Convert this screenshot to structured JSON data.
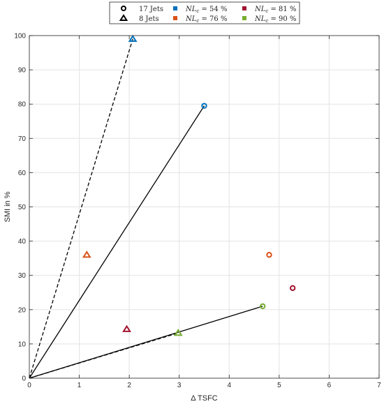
{
  "chart_data": {
    "type": "scatter",
    "title": "",
    "xlabel": "Δ TSFC",
    "ylabel": "SMI in %",
    "xlim": [
      0,
      7
    ],
    "ylim": [
      0,
      100
    ],
    "xticks": [
      "0",
      "1",
      "2",
      "3",
      "4",
      "5",
      "6",
      "7"
    ],
    "yticks": [
      "0",
      "10",
      "20",
      "30",
      "40",
      "50",
      "60",
      "70",
      "80",
      "90",
      "100"
    ],
    "grid": true,
    "legend_position": "top",
    "legend": {
      "markers": [
        {
          "label": "17 Jets",
          "shape": "circle"
        },
        {
          "label": "8 Jets",
          "shape": "triangle"
        }
      ],
      "colors": [
        {
          "label_var": "NL",
          "label_sub": "c",
          "label_rest": " = 54 %",
          "color": "#0072BD"
        },
        {
          "label_var": "NL",
          "label_sub": "c",
          "label_rest": " = 76 %",
          "color": "#D95319"
        },
        {
          "label_var": "NL",
          "label_sub": "c",
          "label_rest": " = 81 %",
          "color": "#A2142F"
        },
        {
          "label_var": "NL",
          "label_sub": "c",
          "label_rest": " = 90 %",
          "color": "#77AC30"
        }
      ]
    },
    "points": [
      {
        "shape": "circle",
        "color": "#0072BD",
        "x": 3.5,
        "y": 79.5
      },
      {
        "shape": "circle",
        "color": "#D95319",
        "x": 4.8,
        "y": 36
      },
      {
        "shape": "circle",
        "color": "#A2142F",
        "x": 5.27,
        "y": 26.3
      },
      {
        "shape": "circle",
        "color": "#77AC30",
        "x": 4.67,
        "y": 21
      },
      {
        "shape": "triangle",
        "color": "#0072BD",
        "x": 2.07,
        "y": 99
      },
      {
        "shape": "triangle",
        "color": "#D95319",
        "x": 1.15,
        "y": 36
      },
      {
        "shape": "triangle",
        "color": "#A2142F",
        "x": 1.95,
        "y": 14.3
      },
      {
        "shape": "triangle",
        "color": "#77AC30",
        "x": 2.98,
        "y": 13.2
      }
    ],
    "lines": [
      {
        "style": "solid",
        "x": [
          0,
          3.5
        ],
        "y": [
          0,
          79.5
        ]
      },
      {
        "style": "solid",
        "x": [
          0,
          4.67
        ],
        "y": [
          0,
          21
        ]
      },
      {
        "style": "dashed",
        "x": [
          0,
          2.07
        ],
        "y": [
          0,
          99
        ]
      },
      {
        "style": "dashed",
        "x": [
          0,
          2.98
        ],
        "y": [
          0,
          13.2
        ]
      }
    ]
  }
}
